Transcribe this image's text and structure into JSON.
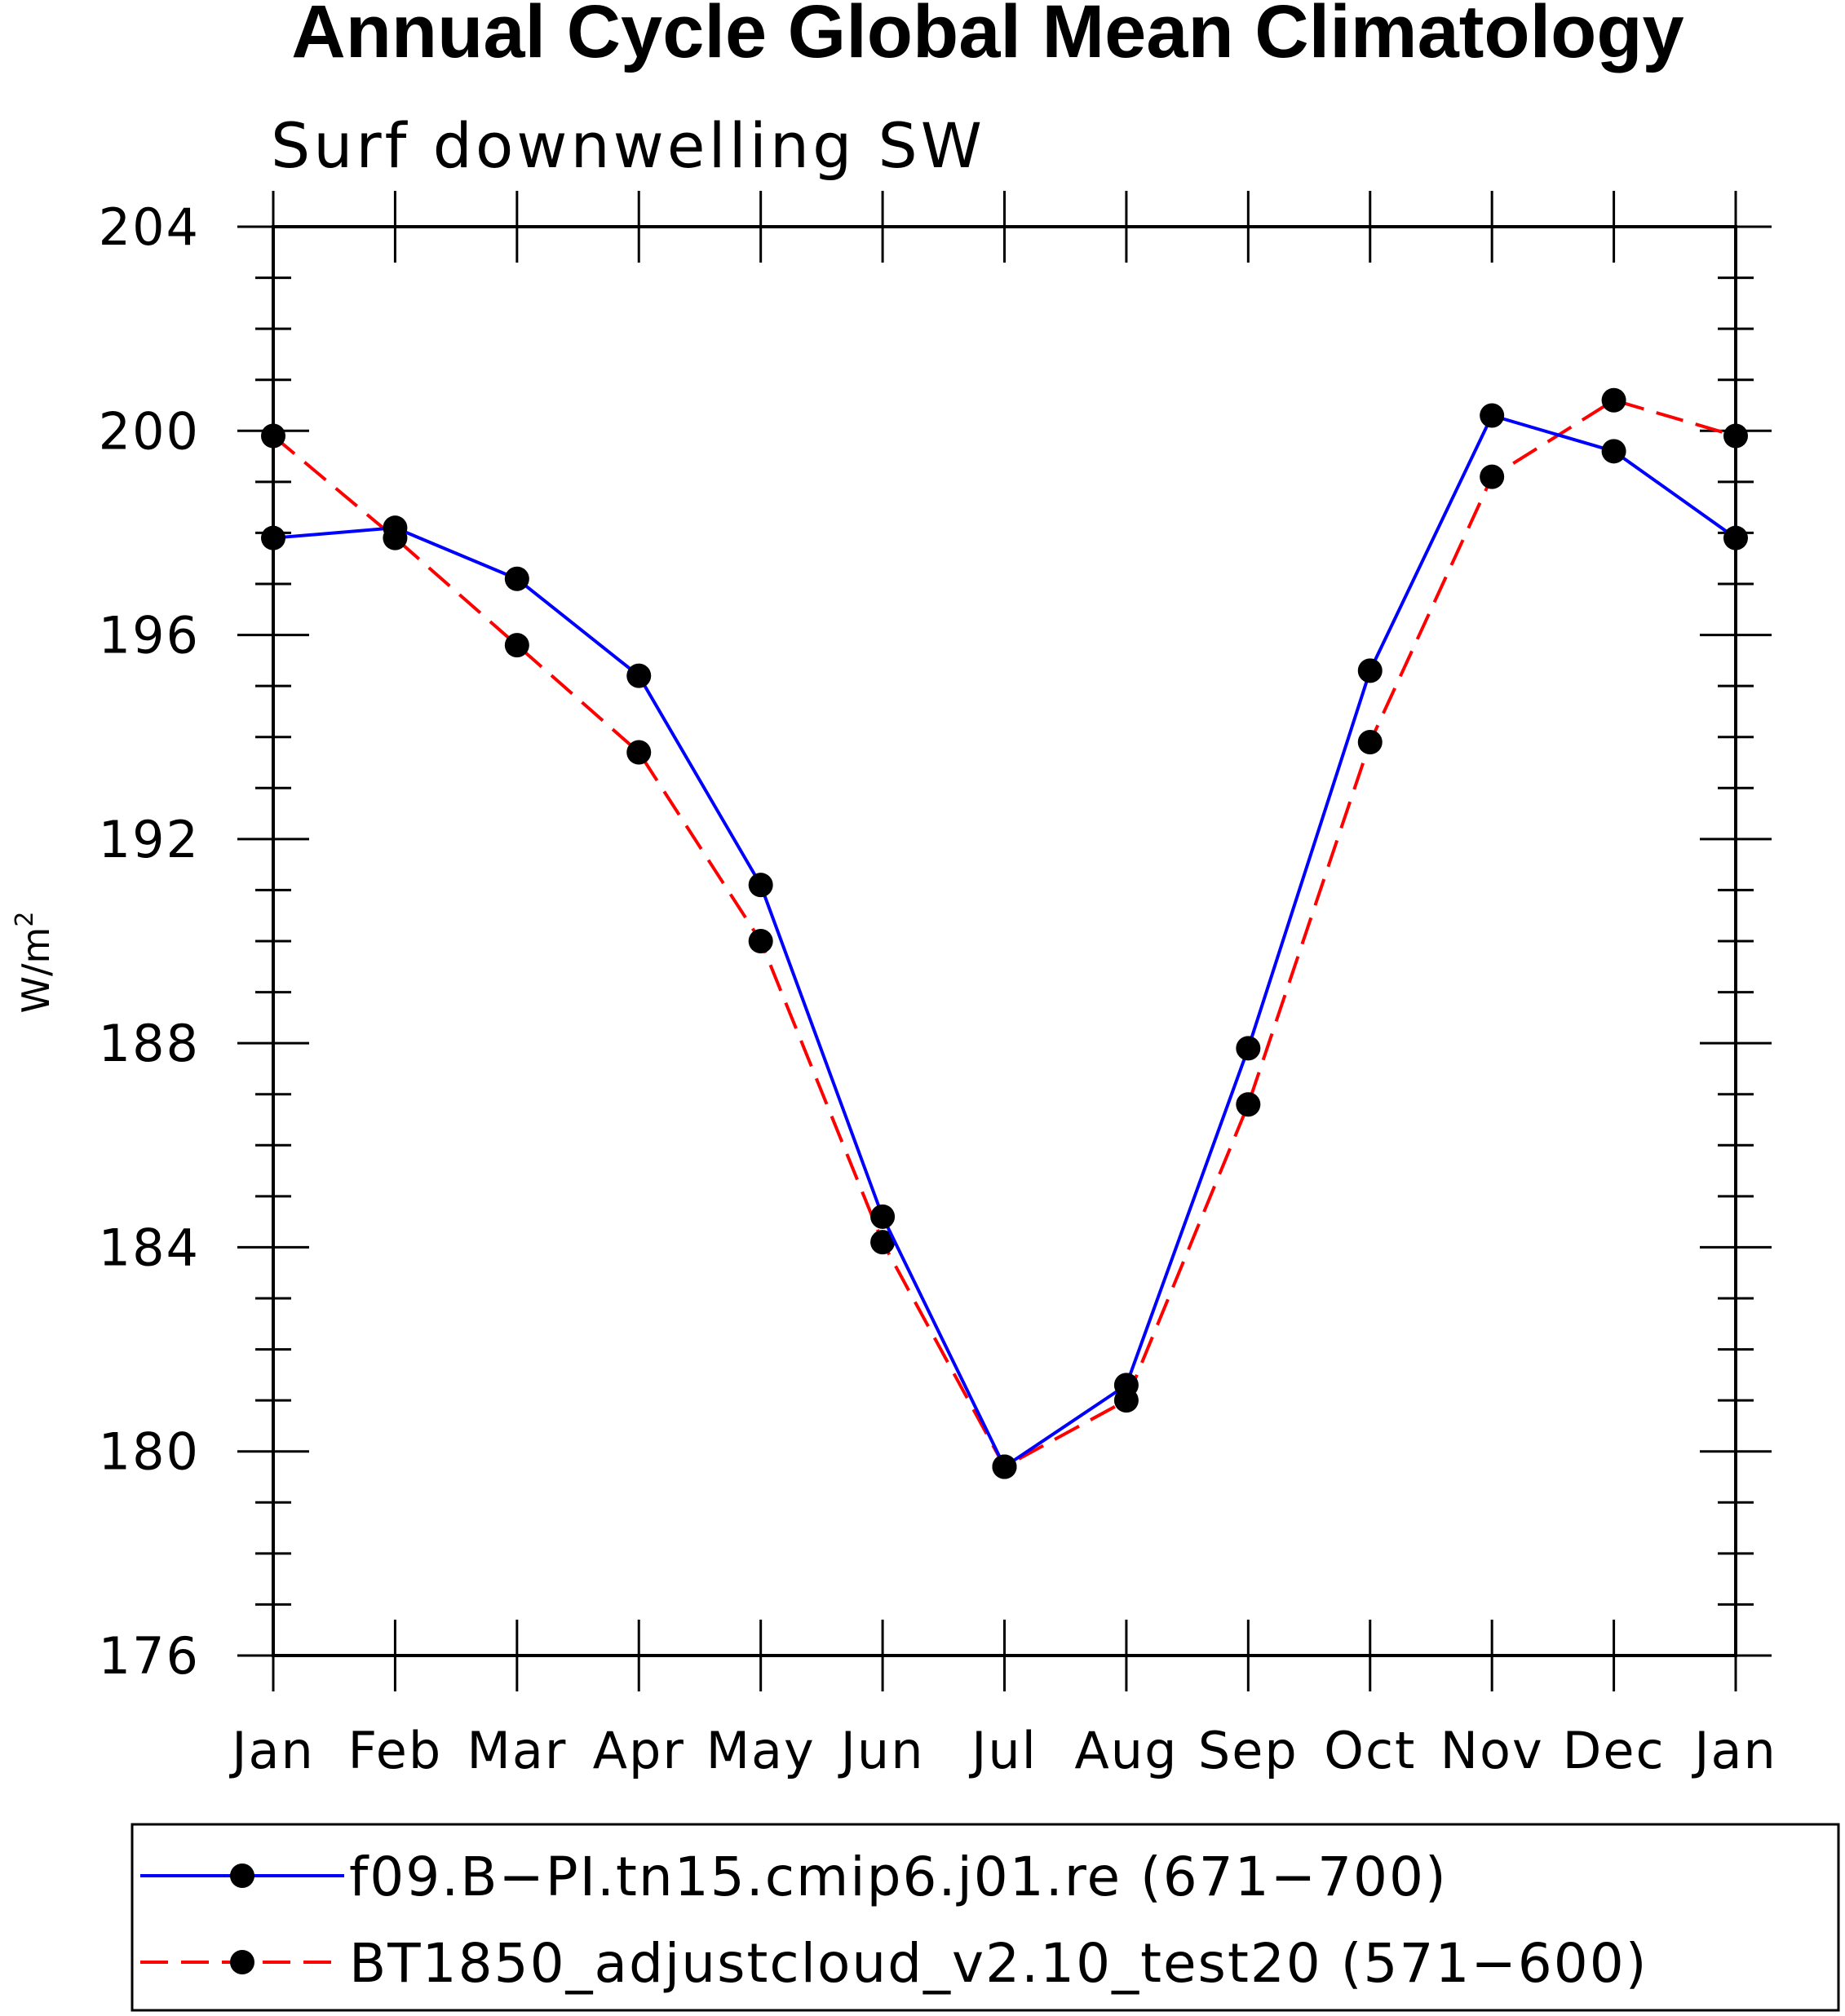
{
  "chart_data": {
    "type": "line",
    "title": "Annual Cycle Global Mean Climatology",
    "subtitle": "Surf downwelling SW",
    "ylabel": "W/m",
    "ylabel_sup": "2",
    "xlabel": "",
    "categories": [
      "Jan",
      "Feb",
      "Mar",
      "Apr",
      "May",
      "Jun",
      "Jul",
      "Aug",
      "Sep",
      "Oct",
      "Nov",
      "Dec",
      "Jan"
    ],
    "ylim": [
      176,
      204
    ],
    "yticks": [
      176,
      180,
      184,
      188,
      192,
      196,
      200,
      204
    ],
    "series": [
      {
        "name": "f09.B−PI.tn15.cmip6.j01.re (671−700)",
        "color": "#0000ff",
        "dash": "solid",
        "values": [
          197.9,
          198.1,
          197.1,
          195.2,
          191.1,
          184.6,
          179.7,
          181.3,
          187.9,
          195.3,
          200.3,
          199.6,
          197.9
        ]
      },
      {
        "name": "BT1850_adjustcloud_v2.10_test20 (571−600)",
        "color": "#ff0000",
        "dash": "dashed",
        "values": [
          199.9,
          197.9,
          195.8,
          193.7,
          190.0,
          184.1,
          179.7,
          181.0,
          186.8,
          193.9,
          199.1,
          200.6,
          199.9
        ]
      }
    ],
    "marker_color": "#000000",
    "legend_position": "bottom"
  }
}
